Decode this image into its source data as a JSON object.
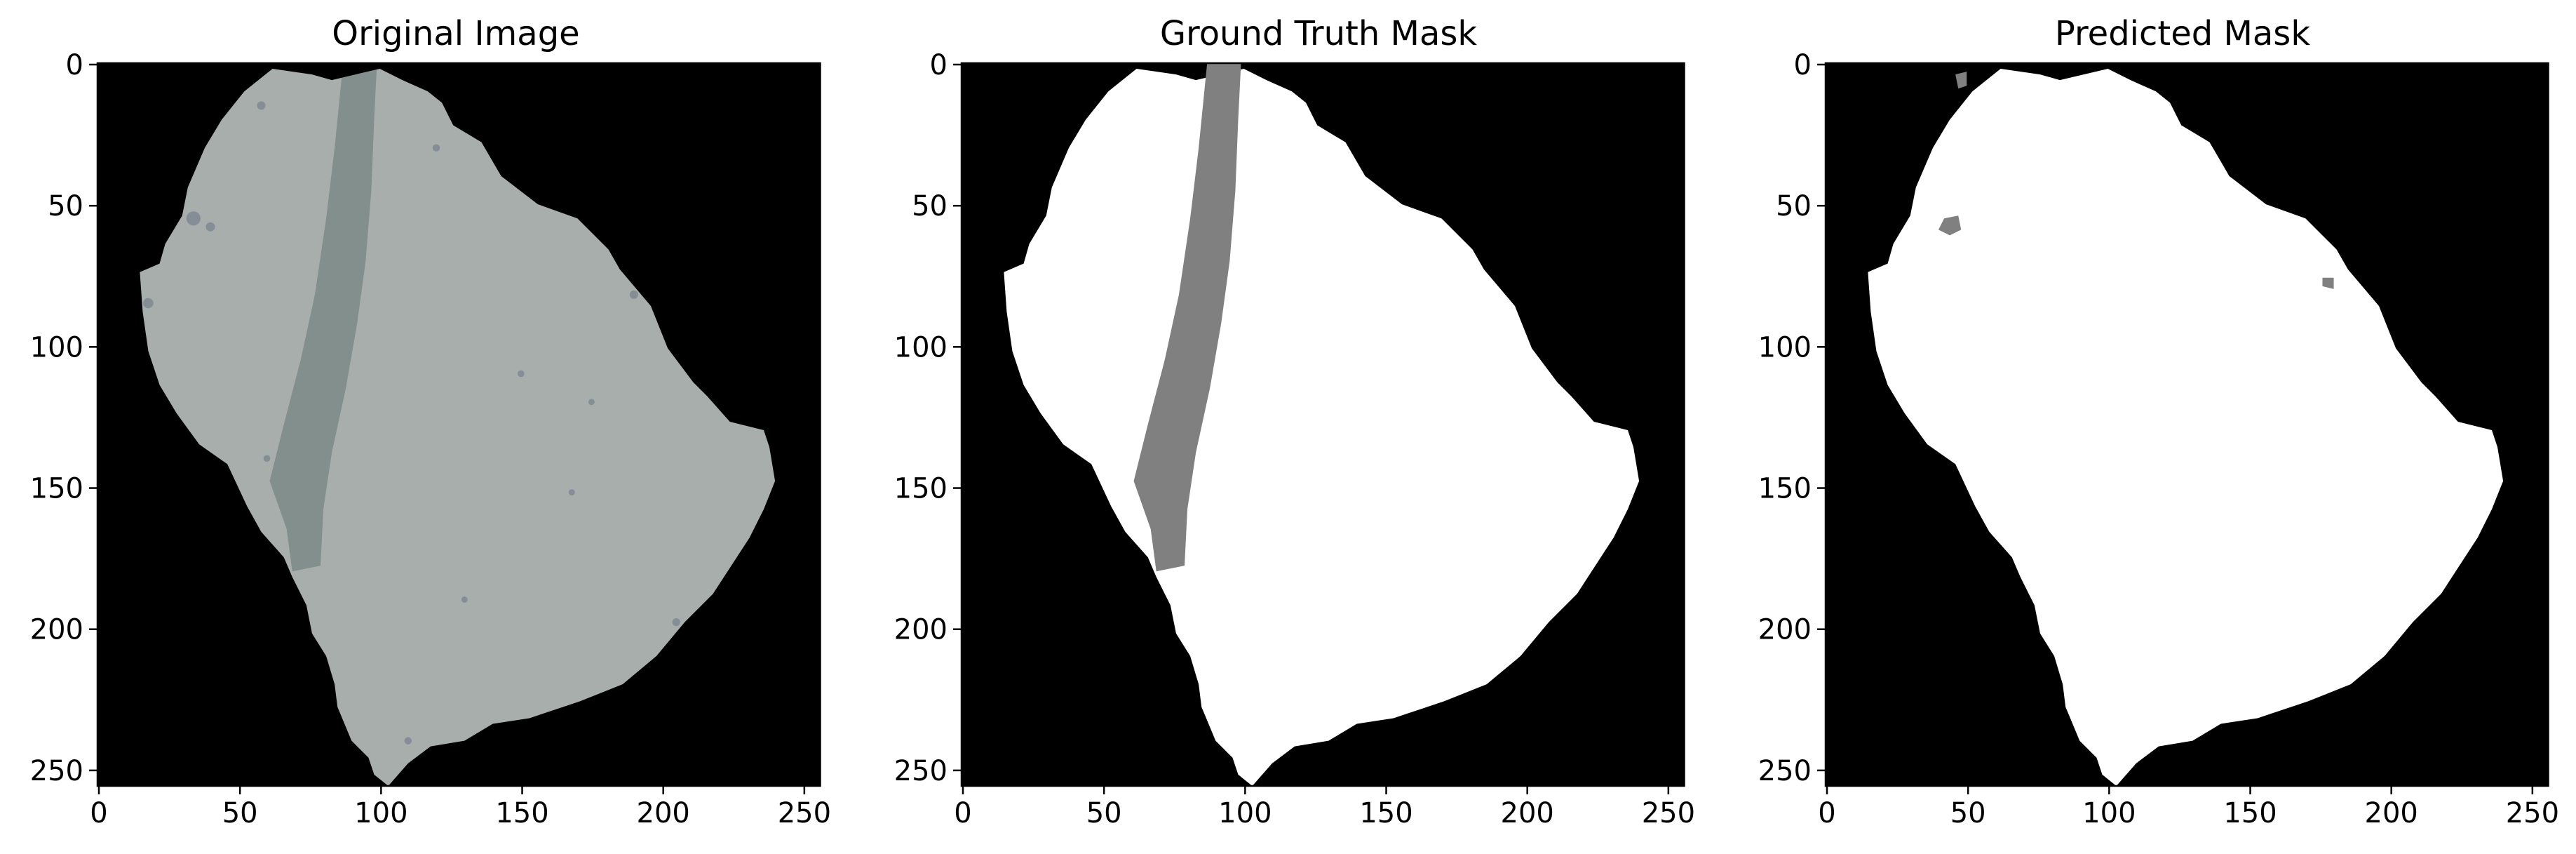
{
  "figure": {
    "panels": [
      {
        "title": "Original Image",
        "kind": "photo",
        "x_ticks": [
          "0",
          "50",
          "100",
          "150",
          "200",
          "250"
        ],
        "y_ticks": [
          "0",
          "50",
          "100",
          "150",
          "200",
          "250"
        ],
        "colors": {
          "background": "#000000",
          "fragment": "#a7aeac",
          "band": "#7d8a86",
          "specks": "#6a7486"
        }
      },
      {
        "title": "Ground Truth Mask",
        "kind": "mask",
        "x_ticks": [
          "0",
          "50",
          "100",
          "150",
          "200",
          "250"
        ],
        "y_ticks": [
          "0",
          "50",
          "100",
          "150",
          "200",
          "250"
        ],
        "colors": {
          "background": "#000000",
          "fragment": "#ffffff",
          "band": "#808080"
        }
      },
      {
        "title": "Predicted Mask",
        "kind": "mask",
        "x_ticks": [
          "0",
          "50",
          "100",
          "150",
          "200",
          "250"
        ],
        "y_ticks": [
          "0",
          "50",
          "100",
          "150",
          "200",
          "250"
        ],
        "colors": {
          "background": "#000000",
          "fragment": "#ffffff",
          "band": "#808080"
        }
      }
    ]
  }
}
